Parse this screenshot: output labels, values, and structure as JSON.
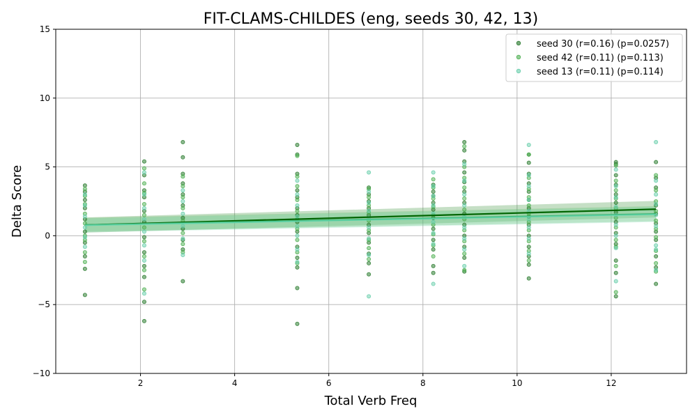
{
  "chart_data": {
    "type": "scatter",
    "title": "FIT-CLAMS-CHILDES (eng, seeds 30, 42, 13)",
    "xlabel": "Total Verb Freq",
    "ylabel": "Delta Score",
    "xlim": [
      0.2,
      13.6
    ],
    "ylim": [
      -10,
      15
    ],
    "xticks": [
      2,
      4,
      6,
      8,
      10,
      12
    ],
    "yticks": [
      -10,
      -5,
      0,
      5,
      10,
      15
    ],
    "grid": true,
    "legend_position": "top-right",
    "x_groups": [
      0.82,
      2.08,
      2.9,
      5.33,
      6.85,
      8.22,
      8.88,
      10.25,
      12.1,
      12.95
    ],
    "series": [
      {
        "name": "seed 30 (r=0.16) (p=0.0257)",
        "color": "#2e7d32",
        "marker_opacity": 0.55,
        "line_color": "#006400",
        "band_color": "#2e8b2e",
        "band_halfwidth": [
          0.55,
          0.6
        ],
        "regression": {
          "x": [
            0.82,
            12.95
          ],
          "y": [
            0.78,
            1.93
          ]
        },
        "points": [
          [
            0.82,
            3.65
          ],
          [
            0.82,
            3.2
          ],
          [
            0.82,
            2.6
          ],
          [
            0.82,
            2.0
          ],
          [
            0.82,
            1.2
          ],
          [
            0.82,
            0.3
          ],
          [
            0.82,
            -0.5
          ],
          [
            0.82,
            -1.5
          ],
          [
            0.82,
            -2.4
          ],
          [
            0.82,
            -4.3
          ],
          [
            2.08,
            5.4
          ],
          [
            2.08,
            4.4
          ],
          [
            2.08,
            3.3
          ],
          [
            2.08,
            2.8
          ],
          [
            2.08,
            1.8
          ],
          [
            2.08,
            1.0
          ],
          [
            2.08,
            -0.1
          ],
          [
            2.08,
            -1.2
          ],
          [
            2.08,
            -2.2
          ],
          [
            2.08,
            -3.0
          ],
          [
            2.08,
            -4.8
          ],
          [
            2.08,
            -6.2
          ],
          [
            2.9,
            6.8
          ],
          [
            2.9,
            5.7
          ],
          [
            2.9,
            4.5
          ],
          [
            2.9,
            3.8
          ],
          [
            2.9,
            3.0
          ],
          [
            2.9,
            2.2
          ],
          [
            2.9,
            1.3
          ],
          [
            2.9,
            0.5
          ],
          [
            2.9,
            -0.3
          ],
          [
            2.9,
            -1.0
          ],
          [
            2.9,
            -3.3
          ],
          [
            5.33,
            6.6
          ],
          [
            5.33,
            5.9
          ],
          [
            5.33,
            4.5
          ],
          [
            5.33,
            3.3
          ],
          [
            5.33,
            2.8
          ],
          [
            5.33,
            2.0
          ],
          [
            5.33,
            1.5
          ],
          [
            5.33,
            1.0
          ],
          [
            5.33,
            0.3
          ],
          [
            5.33,
            -0.8
          ],
          [
            5.33,
            -1.6
          ],
          [
            5.33,
            -2.3
          ],
          [
            5.33,
            -3.8
          ],
          [
            5.33,
            -6.4
          ],
          [
            6.85,
            3.5
          ],
          [
            6.85,
            3.0
          ],
          [
            6.85,
            2.5
          ],
          [
            6.85,
            2.0
          ],
          [
            6.85,
            1.5
          ],
          [
            6.85,
            0.8
          ],
          [
            6.85,
            0.2
          ],
          [
            6.85,
            -0.5
          ],
          [
            6.85,
            -1.3
          ],
          [
            6.85,
            -2.0
          ],
          [
            6.85,
            -2.8
          ],
          [
            8.22,
            3.7
          ],
          [
            8.22,
            3.2
          ],
          [
            8.22,
            2.9
          ],
          [
            8.22,
            2.4
          ],
          [
            8.22,
            1.9
          ],
          [
            8.22,
            1.3
          ],
          [
            8.22,
            0.5
          ],
          [
            8.22,
            -0.3
          ],
          [
            8.22,
            -1.0
          ],
          [
            8.22,
            -2.2
          ],
          [
            8.22,
            -2.7
          ],
          [
            8.88,
            6.8
          ],
          [
            8.88,
            6.2
          ],
          [
            8.88,
            5.4
          ],
          [
            8.88,
            4.6
          ],
          [
            8.88,
            3.9
          ],
          [
            8.88,
            3.2
          ],
          [
            8.88,
            2.4
          ],
          [
            8.88,
            1.6
          ],
          [
            8.88,
            0.8
          ],
          [
            8.88,
            0.0
          ],
          [
            8.88,
            -0.8
          ],
          [
            8.88,
            -1.6
          ],
          [
            8.88,
            -2.6
          ],
          [
            10.25,
            5.9
          ],
          [
            10.25,
            5.3
          ],
          [
            10.25,
            4.5
          ],
          [
            10.25,
            3.8
          ],
          [
            10.25,
            3.2
          ],
          [
            10.25,
            2.6
          ],
          [
            10.25,
            2.0
          ],
          [
            10.25,
            1.4
          ],
          [
            10.25,
            0.8
          ],
          [
            10.25,
            0.0
          ],
          [
            10.25,
            -0.8
          ],
          [
            10.25,
            -1.5
          ],
          [
            10.25,
            -2.1
          ],
          [
            10.25,
            -3.1
          ],
          [
            12.1,
            5.35
          ],
          [
            12.1,
            5.2
          ],
          [
            12.1,
            4.4
          ],
          [
            12.1,
            3.7
          ],
          [
            12.1,
            3.0
          ],
          [
            12.1,
            2.4
          ],
          [
            12.1,
            1.7
          ],
          [
            12.1,
            1.0
          ],
          [
            12.1,
            0.2
          ],
          [
            12.1,
            -0.6
          ],
          [
            12.1,
            -1.8
          ],
          [
            12.1,
            -2.7
          ],
          [
            12.1,
            -4.4
          ],
          [
            12.95,
            5.35
          ],
          [
            12.95,
            4.2
          ],
          [
            12.95,
            3.5
          ],
          [
            12.95,
            2.2
          ],
          [
            12.95,
            1.6
          ],
          [
            12.95,
            0.9
          ],
          [
            12.95,
            0.3
          ],
          [
            12.95,
            -0.3
          ],
          [
            12.95,
            -1.5
          ],
          [
            12.95,
            -2.3
          ],
          [
            12.95,
            -3.5
          ]
        ]
      },
      {
        "name": "seed 42 (r=0.11) (p=0.113)",
        "color": "#4caf50",
        "marker_opacity": 0.5,
        "line_color": "#3cb371",
        "band_color": "#5cb85c",
        "band_halfwidth": [
          0.5,
          0.55
        ],
        "regression": {
          "x": [
            0.82,
            12.95
          ],
          "y": [
            0.8,
            1.6
          ]
        },
        "points": [
          [
            0.82,
            3.4
          ],
          [
            0.82,
            2.9
          ],
          [
            0.82,
            2.3
          ],
          [
            0.82,
            1.6
          ],
          [
            0.82,
            0.9
          ],
          [
            0.82,
            0.0
          ],
          [
            0.82,
            -0.3
          ],
          [
            0.82,
            -1.2
          ],
          [
            0.82,
            -1.9
          ],
          [
            2.08,
            4.9
          ],
          [
            2.08,
            3.8
          ],
          [
            2.08,
            3.1
          ],
          [
            2.08,
            2.3
          ],
          [
            2.08,
            1.5
          ],
          [
            2.08,
            0.6
          ],
          [
            2.08,
            -0.4
          ],
          [
            2.08,
            -1.5
          ],
          [
            2.08,
            -2.5
          ],
          [
            2.08,
            -3.9
          ],
          [
            2.9,
            4.3
          ],
          [
            2.9,
            3.6
          ],
          [
            2.9,
            2.8
          ],
          [
            2.9,
            2.0
          ],
          [
            2.9,
            1.1
          ],
          [
            2.9,
            0.2
          ],
          [
            2.9,
            -0.6
          ],
          [
            2.9,
            -1.2
          ],
          [
            5.33,
            5.8
          ],
          [
            5.33,
            4.3
          ],
          [
            5.33,
            3.6
          ],
          [
            5.33,
            2.6
          ],
          [
            5.33,
            1.8
          ],
          [
            5.33,
            1.2
          ],
          [
            5.33,
            0.5
          ],
          [
            5.33,
            -0.3
          ],
          [
            5.33,
            -1.2
          ],
          [
            5.33,
            -2.0
          ],
          [
            6.85,
            3.4
          ],
          [
            6.85,
            2.8
          ],
          [
            6.85,
            2.2
          ],
          [
            6.85,
            1.7
          ],
          [
            6.85,
            1.1
          ],
          [
            6.85,
            0.4
          ],
          [
            6.85,
            -0.3
          ],
          [
            6.85,
            -0.9
          ],
          [
            6.85,
            -1.7
          ],
          [
            8.22,
            4.1
          ],
          [
            8.22,
            3.5
          ],
          [
            8.22,
            2.7
          ],
          [
            8.22,
            2.1
          ],
          [
            8.22,
            1.5
          ],
          [
            8.22,
            0.8
          ],
          [
            8.22,
            0.1
          ],
          [
            8.22,
            -0.7
          ],
          [
            8.22,
            -1.5
          ],
          [
            8.88,
            6.5
          ],
          [
            8.88,
            5.0
          ],
          [
            8.88,
            4.2
          ],
          [
            8.88,
            3.5
          ],
          [
            8.88,
            2.7
          ],
          [
            8.88,
            1.9
          ],
          [
            8.88,
            1.2
          ],
          [
            8.88,
            0.4
          ],
          [
            8.88,
            -0.4
          ],
          [
            8.88,
            -1.3
          ],
          [
            8.88,
            -2.5
          ],
          [
            10.25,
            5.9
          ],
          [
            10.25,
            4.2
          ],
          [
            10.25,
            3.4
          ],
          [
            10.25,
            2.8
          ],
          [
            10.25,
            2.2
          ],
          [
            10.25,
            1.6
          ],
          [
            10.25,
            1.0
          ],
          [
            10.25,
            0.4
          ],
          [
            10.25,
            -0.4
          ],
          [
            10.25,
            -1.1
          ],
          [
            10.25,
            -1.8
          ],
          [
            12.1,
            5.1
          ],
          [
            12.1,
            4.0
          ],
          [
            12.1,
            3.3
          ],
          [
            12.1,
            2.7
          ],
          [
            12.1,
            2.0
          ],
          [
            12.1,
            1.3
          ],
          [
            12.1,
            0.6
          ],
          [
            12.1,
            -0.3
          ],
          [
            12.1,
            -0.8
          ],
          [
            12.1,
            -2.2
          ],
          [
            12.1,
            -4.1
          ],
          [
            12.95,
            4.4
          ],
          [
            12.95,
            3.3
          ],
          [
            12.95,
            2.5
          ],
          [
            12.95,
            1.8
          ],
          [
            12.95,
            1.1
          ],
          [
            12.95,
            0.5
          ],
          [
            12.95,
            -0.1
          ],
          [
            12.95,
            -1.1
          ],
          [
            12.95,
            -2.0
          ],
          [
            12.95,
            -2.6
          ]
        ]
      },
      {
        "name": "seed 13 (r=0.11) (p=0.114)",
        "color": "#66cdaa",
        "marker_opacity": 0.5,
        "line_color": "#5fd3a8",
        "band_color": "#7fd8b5",
        "band_halfwidth": [
          0.5,
          0.55
        ],
        "regression": {
          "x": [
            0.82,
            12.95
          ],
          "y": [
            0.75,
            1.55
          ]
        },
        "points": [
          [
            0.82,
            3.0
          ],
          [
            0.82,
            2.2
          ],
          [
            0.82,
            1.4
          ],
          [
            0.82,
            0.6
          ],
          [
            0.82,
            -0.1
          ],
          [
            0.82,
            -0.8
          ],
          [
            2.08,
            4.6
          ],
          [
            2.08,
            3.0
          ],
          [
            2.08,
            2.0
          ],
          [
            2.08,
            1.2
          ],
          [
            2.08,
            0.3
          ],
          [
            2.08,
            -0.7
          ],
          [
            2.08,
            -1.8
          ],
          [
            2.08,
            -4.2
          ],
          [
            2.9,
            3.3
          ],
          [
            2.9,
            2.5
          ],
          [
            2.9,
            1.6
          ],
          [
            2.9,
            0.7
          ],
          [
            2.9,
            -0.2
          ],
          [
            2.9,
            -1.4
          ],
          [
            5.33,
            4.0
          ],
          [
            5.33,
            3.0
          ],
          [
            5.33,
            2.2
          ],
          [
            5.33,
            1.4
          ],
          [
            5.33,
            0.7
          ],
          [
            5.33,
            0.0
          ],
          [
            5.33,
            -1.0
          ],
          [
            5.33,
            -1.9
          ],
          [
            6.85,
            4.6
          ],
          [
            6.85,
            3.2
          ],
          [
            6.85,
            2.4
          ],
          [
            6.85,
            1.8
          ],
          [
            6.85,
            1.3
          ],
          [
            6.85,
            0.6
          ],
          [
            6.85,
            -0.2
          ],
          [
            6.85,
            -1.4
          ],
          [
            6.85,
            -4.4
          ],
          [
            8.22,
            4.6
          ],
          [
            8.22,
            3.6
          ],
          [
            8.22,
            2.9
          ],
          [
            8.22,
            2.2
          ],
          [
            8.22,
            1.6
          ],
          [
            8.22,
            1.0
          ],
          [
            8.22,
            0.2
          ],
          [
            8.22,
            -0.6
          ],
          [
            8.22,
            -3.5
          ],
          [
            8.88,
            5.2
          ],
          [
            8.88,
            4.0
          ],
          [
            8.88,
            3.0
          ],
          [
            8.88,
            2.2
          ],
          [
            8.88,
            1.4
          ],
          [
            8.88,
            0.6
          ],
          [
            8.88,
            -0.2
          ],
          [
            8.88,
            -1.0
          ],
          [
            8.88,
            -2.2
          ],
          [
            10.25,
            6.6
          ],
          [
            10.25,
            4.4
          ],
          [
            10.25,
            3.6
          ],
          [
            10.25,
            2.6
          ],
          [
            10.25,
            1.8
          ],
          [
            10.25,
            1.2
          ],
          [
            10.25,
            0.6
          ],
          [
            10.25,
            -0.2
          ],
          [
            10.25,
            -1.3
          ],
          [
            12.1,
            4.8
          ],
          [
            12.1,
            3.6
          ],
          [
            12.1,
            2.8
          ],
          [
            12.1,
            2.1
          ],
          [
            12.1,
            1.5
          ],
          [
            12.1,
            0.8
          ],
          [
            12.1,
            0.0
          ],
          [
            12.1,
            -0.9
          ],
          [
            12.1,
            -3.3
          ],
          [
            12.95,
            6.8
          ],
          [
            12.95,
            4.0
          ],
          [
            12.95,
            3.0
          ],
          [
            12.95,
            2.3
          ],
          [
            12.95,
            1.5
          ],
          [
            12.95,
            0.7
          ],
          [
            12.95,
            -0.7
          ],
          [
            12.95,
            -1.0
          ],
          [
            12.95,
            -2.5
          ]
        ]
      }
    ]
  }
}
